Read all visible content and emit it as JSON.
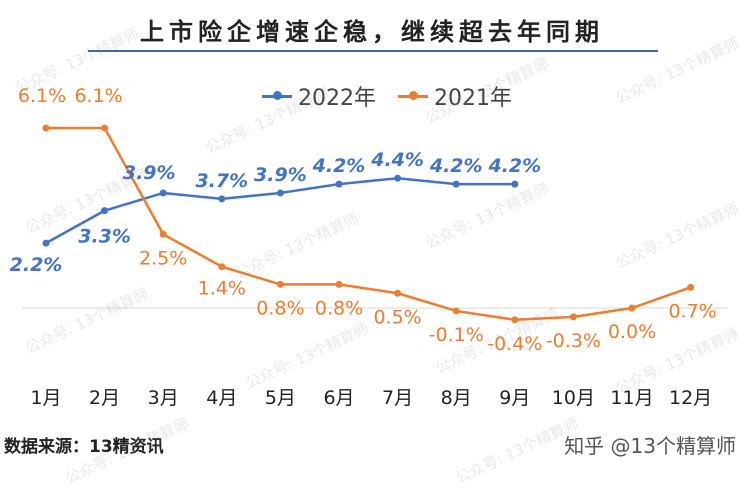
{
  "title": "上市险企增速企稳，继续超去年同期",
  "watermark": "公众号: 13个精算师",
  "footer": {
    "source": "数据来源：13精资讯",
    "credit": "知乎 @13个精算师"
  },
  "colors": {
    "series_2022": "#4472c4",
    "series_2021": "#ed7d31",
    "title_rule": "#3d66a6"
  },
  "chart_data": {
    "type": "line",
    "categories": [
      "1月",
      "2月",
      "3月",
      "4月",
      "5月",
      "6月",
      "7月",
      "8月",
      "9月",
      "10月",
      "11月",
      "12月"
    ],
    "series": [
      {
        "name": "2022年",
        "values": [
          2.2,
          3.3,
          3.9,
          3.7,
          3.9,
          4.2,
          4.4,
          4.2,
          4.2,
          null,
          null,
          null
        ],
        "labels": [
          "2.2%",
          "3.3%",
          "3.9%",
          "3.7%",
          "3.9%",
          "4.2%",
          "4.4%",
          "4.2%",
          "4.2%",
          "",
          "",
          ""
        ]
      },
      {
        "name": "2021年",
        "values": [
          6.1,
          6.1,
          2.5,
          1.4,
          0.8,
          0.8,
          0.5,
          -0.1,
          -0.4,
          -0.3,
          0.0,
          0.7
        ],
        "labels": [
          "6.1%",
          "6.1%",
          "2.5%",
          "1.4%",
          "0.8%",
          "0.8%",
          "0.5%",
          "-0.1%",
          "-0.4%",
          "-0.3%",
          "0.0%",
          "0.7%"
        ]
      }
    ],
    "grid": false,
    "legend": "top-center"
  }
}
